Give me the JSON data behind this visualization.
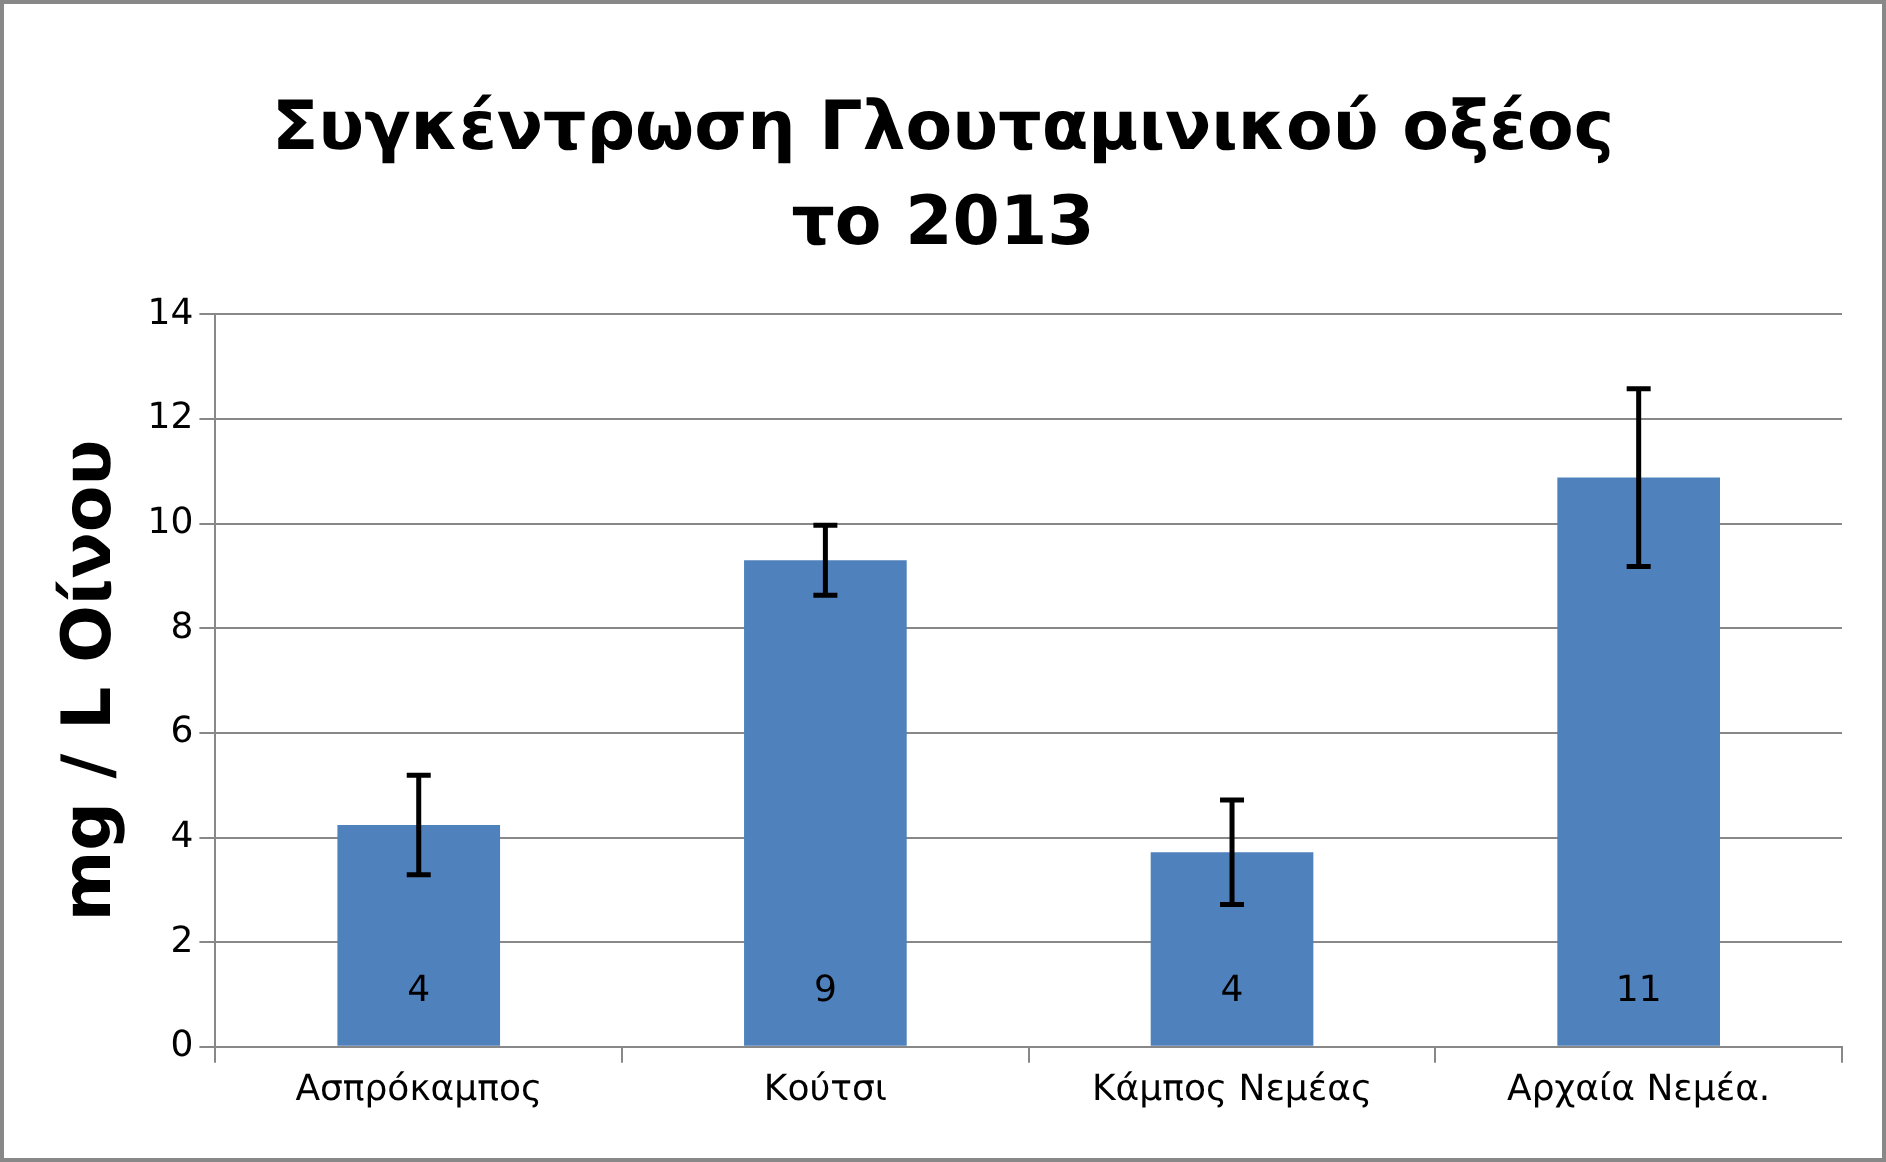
{
  "chart_data": {
    "type": "bar",
    "title": "Συγκέντρωση Γλουταμινικού οξέος\nτο 2013",
    "ylabel": "mg / L Οίνου",
    "categories": [
      "Ασπρόκαμπος",
      "Κούτσι",
      "Κάμπος Νεμέας",
      "Αρχαία Νεμέα."
    ],
    "values": [
      4.24,
      9.3,
      3.72,
      10.88
    ],
    "errors": [
      0.95,
      0.67,
      1.0,
      1.7
    ],
    "value_labels": [
      "4",
      "9",
      "4",
      "11"
    ],
    "color": "#4f81bd",
    "ylim": [
      0,
      14
    ],
    "yticks": [
      0,
      2,
      4,
      6,
      8,
      10,
      12,
      14
    ],
    "grid": "y",
    "legend": false
  }
}
